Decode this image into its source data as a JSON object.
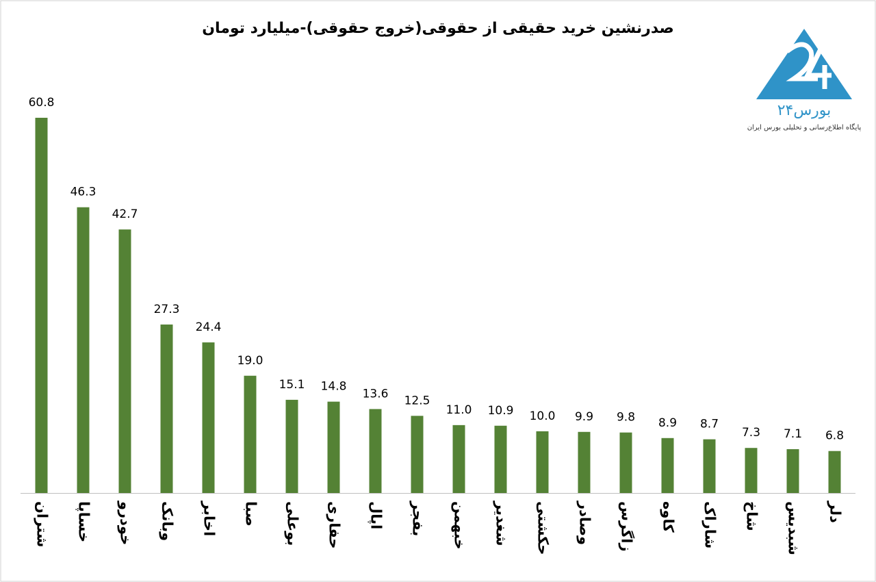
{
  "chart_data": {
    "type": "bar",
    "title": "صدرنشین خرید حقیقی از حقوقی(خروج حقوقی)-میلیارد تومان",
    "categories": [
      "شتران",
      "خساپا",
      "خودرو",
      "وبانک",
      "اخابر",
      "صبا",
      "بوعلی",
      "حفاری",
      "اپال",
      "بفجر",
      "خبهمن",
      "شغدیر",
      "حکشتی",
      "وصادر",
      "زاگرس",
      "کاوه",
      "شاراک",
      "شاخ",
      "شبدیس",
      "دلر"
    ],
    "values": [
      60.8,
      46.3,
      42.7,
      27.3,
      24.4,
      19,
      15.1,
      14.8,
      13.6,
      12.5,
      11,
      10.9,
      10,
      9.9,
      9.8,
      8.9,
      8.7,
      7.3,
      7.1,
      6.8
    ],
    "value_labels": [
      "60.8",
      "46.3",
      "42.7",
      "27.3",
      "24.4",
      "19.0",
      "15.1",
      "14.8",
      "13.6",
      "12.5",
      "11.0",
      "10.9",
      "10.0",
      "9.9",
      "9.8",
      "8.9",
      "8.7",
      "7.3",
      "7.1",
      "6.8"
    ],
    "color": "#548235"
  },
  "logo": {
    "name": "بورس۲۴",
    "tagline": "پایگاه اطلاع‌رسانی و تحلیلی بورس ایران"
  }
}
